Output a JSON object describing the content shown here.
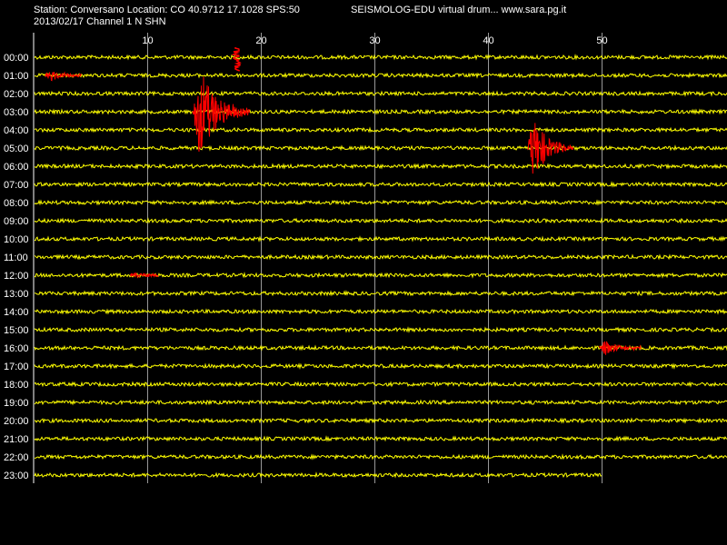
{
  "header": {
    "station_line": "Station: Conversano Location: CO 40.9712 17.1028 SPS:50",
    "date_line": "2013/02/17  Channel 1 N SHN",
    "program_line": "SEISMOLOG-EDU virtual drum... www.sara.pg.it"
  },
  "drum": {
    "minute_ticks": [
      "10",
      "20",
      "30",
      "40",
      "50"
    ],
    "hours": [
      "00:00",
      "01:00",
      "02:00",
      "03:00",
      "04:00",
      "05:00",
      "06:00",
      "07:00",
      "08:00",
      "09:00",
      "10:00",
      "11:00",
      "12:00",
      "13:00",
      "14:00",
      "15:00",
      "16:00",
      "17:00",
      "18:00",
      "19:00",
      "20:00",
      "21:00",
      "22:00",
      "23:00"
    ],
    "last_row_end_minute": 50,
    "colors": {
      "background": "#000000",
      "trace": "#ffff00",
      "event": "#ff0000",
      "grid": "#ffffff",
      "text": "#ffffff"
    },
    "events": [
      {
        "hour": 1,
        "start_min": 1.0,
        "end_min": 4.2,
        "amp": 0.35
      },
      {
        "hour": 3,
        "start_min": 14.0,
        "end_min": 19.0,
        "amp": 2.6
      },
      {
        "hour": 5,
        "start_min": 43.5,
        "end_min": 47.5,
        "amp": 1.8
      },
      {
        "hour": 12,
        "start_min": 8.5,
        "end_min": 11.0,
        "amp": 0.15
      },
      {
        "hour": 16,
        "start_min": 49.8,
        "end_min": 53.5,
        "amp": 0.5
      }
    ]
  }
}
